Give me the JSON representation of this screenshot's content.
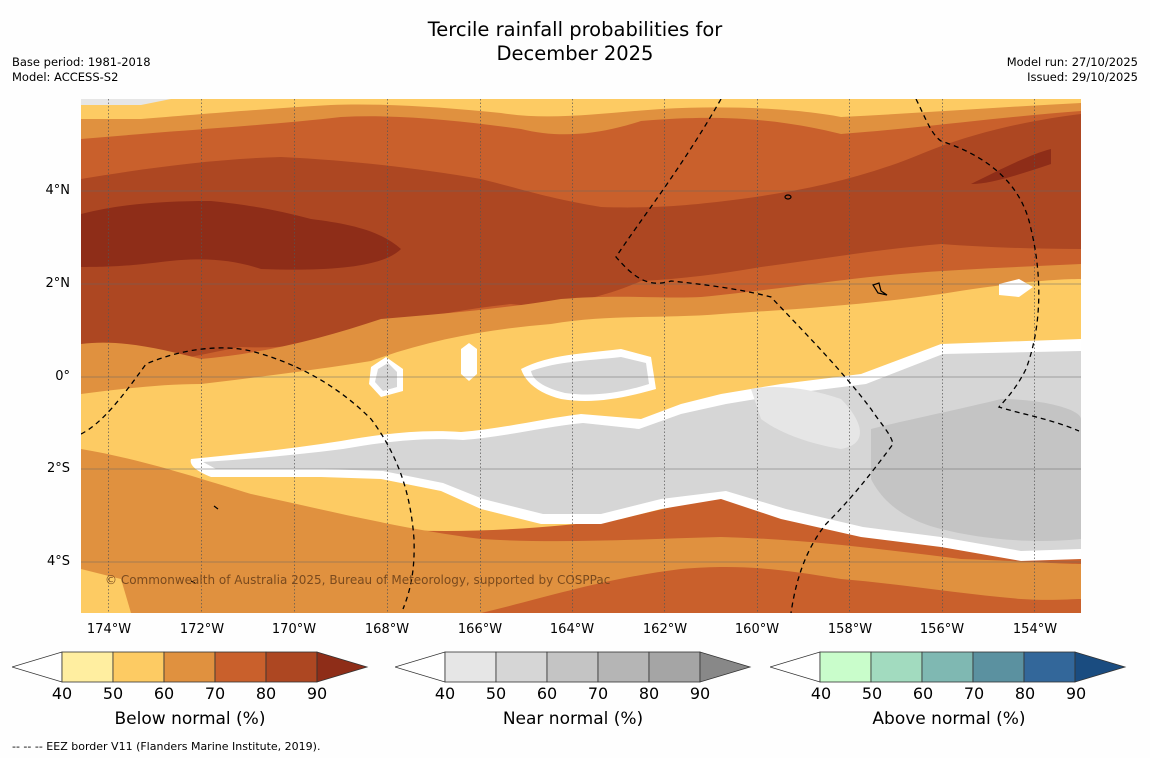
{
  "title": {
    "line1": "Tercile rainfall probabilities for",
    "line2": "December 2025"
  },
  "meta": {
    "base_period": "Base period: 1981-2018",
    "model": "Model: ACCESS-S2",
    "model_run": "Model run: 27/10/2025",
    "issued": "Issued: 29/10/2025"
  },
  "map": {
    "copyright": "© Commonwealth of Australia 2025, Bureau of Meteorology, supported by COSPPac",
    "lat_labels": [
      "4°N",
      "2°N",
      "0°",
      "2°S",
      "4°S"
    ],
    "lon_labels": [
      "174°W",
      "172°W",
      "170°W",
      "168°W",
      "166°W",
      "164°W",
      "162°W",
      "160°W",
      "158°W",
      "156°W",
      "154°W"
    ]
  },
  "colorbars": [
    {
      "label": "Below normal (%)",
      "ticks": [
        "40",
        "50",
        "60",
        "70",
        "80",
        "90"
      ],
      "colors": [
        "#ffeea0",
        "#fdcb63",
        "#e0913f",
        "#c9602c",
        "#ad4722",
        "#8e2d18"
      ]
    },
    {
      "label": "Near normal (%)",
      "ticks": [
        "40",
        "50",
        "60",
        "70",
        "80",
        "90"
      ],
      "colors": [
        "#e6e6e6",
        "#d6d6d6",
        "#c4c4c4",
        "#b5b5b5",
        "#a5a5a5",
        "#888888"
      ]
    },
    {
      "label": "Above normal (%)",
      "ticks": [
        "40",
        "50",
        "60",
        "70",
        "80",
        "90"
      ],
      "colors": [
        "#c9fdcb",
        "#a2dbbf",
        "#7fb8b2",
        "#5b91a0",
        "#33679a",
        "#1a4c80"
      ]
    }
  ],
  "footer": "--  --  -- EEZ border V11 (Flanders Marine Institute, 2019).",
  "colors": {
    "gray_bg": "#d6d6d6",
    "gray_dark": "#c4c4c4",
    "white_border": "#ffffff"
  }
}
